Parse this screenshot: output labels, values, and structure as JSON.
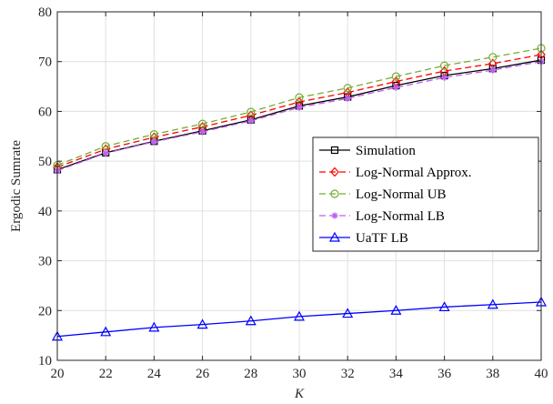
{
  "chart_data": {
    "type": "line",
    "title": "",
    "xlabel": "K",
    "ylabel": "Ergodic Sumrate",
    "xlim": [
      20,
      40
    ],
    "ylim": [
      10,
      80
    ],
    "x": [
      20,
      22,
      24,
      26,
      28,
      30,
      32,
      34,
      36,
      38,
      40
    ],
    "xticks": [
      20,
      22,
      24,
      26,
      28,
      30,
      32,
      34,
      36,
      38,
      40
    ],
    "yticks": [
      10,
      20,
      30,
      40,
      50,
      60,
      70,
      80
    ],
    "grid": true,
    "legend_position": "center-right",
    "series": [
      {
        "name": "Simulation",
        "color": "#000000",
        "dash": "solid",
        "marker": "square",
        "values": [
          48.3,
          51.7,
          54.0,
          56.1,
          58.3,
          61.1,
          62.9,
          65.2,
          67.2,
          68.6,
          70.3
        ]
      },
      {
        "name": "Log-Normal Approx.",
        "color": "#ff0000",
        "dash": "dashed",
        "marker": "diamond",
        "values": [
          48.8,
          52.4,
          54.8,
          56.9,
          59.2,
          61.9,
          63.8,
          66.0,
          68.1,
          69.6,
          71.4
        ]
      },
      {
        "name": "Log-Normal UB",
        "color": "#77ac30",
        "dash": "dashed",
        "marker": "circle",
        "values": [
          49.2,
          53.0,
          55.4,
          57.5,
          59.9,
          62.8,
          64.7,
          67.0,
          69.2,
          70.9,
          72.7
        ]
      },
      {
        "name": "Log-Normal LB",
        "color": "#bf5ff0",
        "dash": "dashed",
        "marker": "star",
        "values": [
          48.1,
          51.6,
          53.9,
          55.9,
          58.1,
          60.8,
          62.6,
          64.8,
          66.8,
          68.3,
          70.0
        ]
      },
      {
        "name": "UaTF LB",
        "color": "#0000ff",
        "dash": "solid",
        "marker": "triangle",
        "values": [
          14.8,
          15.7,
          16.6,
          17.2,
          17.9,
          18.8,
          19.4,
          20.0,
          20.7,
          21.2,
          21.7
        ]
      }
    ]
  }
}
